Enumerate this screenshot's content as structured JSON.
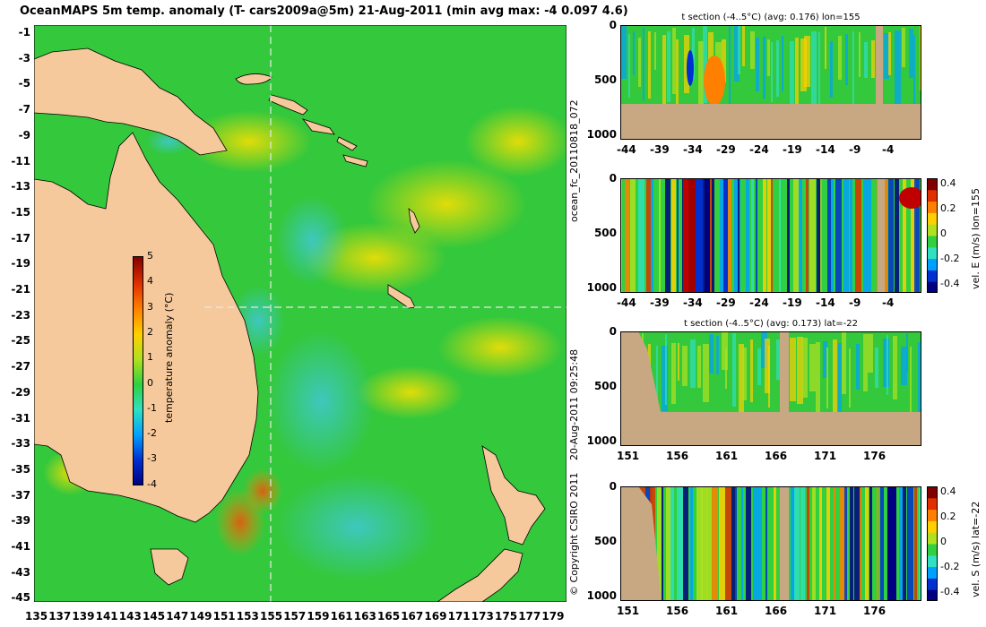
{
  "title": "OceanMAPS 5m temp. anomaly (T- cars2009a@5m) 21-Aug-2011 (min avg max: -4 0.097 4.6)",
  "map": {
    "lat_labels": [
      "-1",
      "-3",
      "-5",
      "-7",
      "-9",
      "-11",
      "-13",
      "-15",
      "-17",
      "-19",
      "-21",
      "-23",
      "-25",
      "-27",
      "-29",
      "-31",
      "-33",
      "-35",
      "-37",
      "-39",
      "-41",
      "-43",
      "-45"
    ],
    "lon_labels": [
      "135",
      "137",
      "139",
      "141",
      "143",
      "145",
      "147",
      "149",
      "151",
      "153",
      "155",
      "157",
      "159",
      "161",
      "163",
      "165",
      "167",
      "169",
      "171",
      "173",
      "175",
      "177",
      "179"
    ],
    "section_lon": "155",
    "section_lat": "-22",
    "colors": {
      "ocean": "#34c83c",
      "land": "#f6c99c",
      "anomaly_warm": "#ffd200",
      "anomaly_cool": "#3cbfe0",
      "section_line": "#e8e8e8"
    }
  },
  "colorbar": {
    "label": "temperature anomaly (°C)",
    "ticks": [
      "5",
      "4",
      "3",
      "2",
      "1",
      "0",
      "-1",
      "-2",
      "-3",
      "-4"
    ],
    "colors": [
      "#000080",
      "#0030d0",
      "#00a0ff",
      "#30e0c0",
      "#30d040",
      "#b0e020",
      "#ffd000",
      "#ff8000",
      "#e03000",
      "#800000"
    ]
  },
  "panels": [
    {
      "title": "t section (-4..5°C) (avg: 0.176) lon=155",
      "x_ticks": [
        "-44",
        "-39",
        "-34",
        "-29",
        "-24",
        "-19",
        "-14",
        "-9",
        "-4"
      ],
      "y_ticks": [
        "0",
        "500",
        "1000"
      ],
      "side_label": ""
    },
    {
      "title": "",
      "x_ticks": [
        "-44",
        "-39",
        "-34",
        "-29",
        "-24",
        "-19",
        "-14",
        "-9",
        "-4"
      ],
      "y_ticks": [
        "0",
        "500",
        "1000"
      ],
      "side_label": "vel. E (m/s) lon=155",
      "cbar_ticks": [
        "0.4",
        "0.2",
        "0",
        "-0.2",
        "-0.4"
      ]
    },
    {
      "title": "t section (-4..5°C) (avg: 0.173) lat=-22",
      "x_ticks": [
        "151",
        "156",
        "161",
        "166",
        "171",
        "176"
      ],
      "y_ticks": [
        "0",
        "500",
        "1000"
      ],
      "side_label": ""
    },
    {
      "title": "",
      "x_ticks": [
        "151",
        "156",
        "161",
        "166",
        "171",
        "176"
      ],
      "y_ticks": [
        "0",
        "500",
        "1000"
      ],
      "side_label": "vel. S (m/s) lat=-22",
      "cbar_ticks": [
        "0.4",
        "0.2",
        "0",
        "-0.2",
        "-0.4"
      ]
    }
  ],
  "vertical_texts": {
    "run_id": "ocean_fc_20110818_072",
    "run_time": "20-Aug-2011 09:25:48",
    "copyright": "© Copyright CSIRO 2011"
  }
}
